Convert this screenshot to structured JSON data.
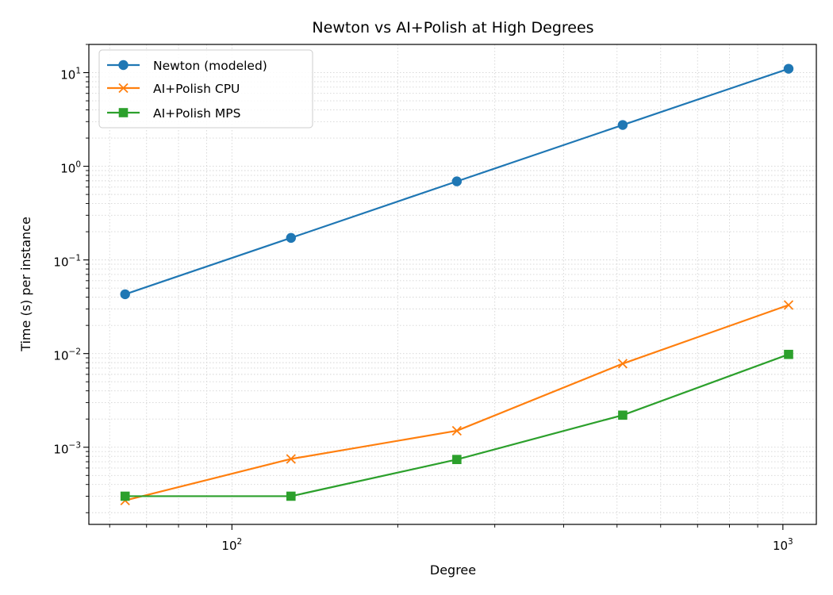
{
  "chart_data": {
    "type": "line",
    "title": "Newton vs AI+Polish at High Degrees",
    "xlabel": "Degree",
    "ylabel": "Time (s) per instance",
    "xscale": "log",
    "yscale": "log",
    "xlim": [
      55,
      1150
    ],
    "ylim": [
      0.00015,
      20
    ],
    "grid": true,
    "legend_position": "top-left",
    "x": [
      64,
      128,
      256,
      512,
      1024
    ],
    "x_tick_labels": [
      {
        "base": "10",
        "exp": "2"
      },
      {
        "base": "10",
        "exp": "3"
      }
    ],
    "y_tick_labels": [
      {
        "base": "10",
        "exp": "1"
      },
      {
        "base": "10",
        "exp": "0"
      },
      {
        "base": "10",
        "exp": "−1"
      },
      {
        "base": "10",
        "exp": "−2"
      },
      {
        "base": "10",
        "exp": "−3"
      }
    ],
    "series": [
      {
        "name": "Newton (modeled)",
        "color": "#1f77b4",
        "marker": "circle",
        "values": [
          0.043,
          0.172,
          0.69,
          2.76,
          11.0
        ]
      },
      {
        "name": "AI+Polish CPU",
        "color": "#ff7f0e",
        "marker": "x",
        "values": [
          0.00027,
          0.00075,
          0.0015,
          0.0078,
          0.033
        ]
      },
      {
        "name": "AI+Polish MPS",
        "color": "#2ca02c",
        "marker": "square",
        "values": [
          0.0003,
          0.0003,
          0.00074,
          0.0022,
          0.0098
        ]
      }
    ]
  }
}
